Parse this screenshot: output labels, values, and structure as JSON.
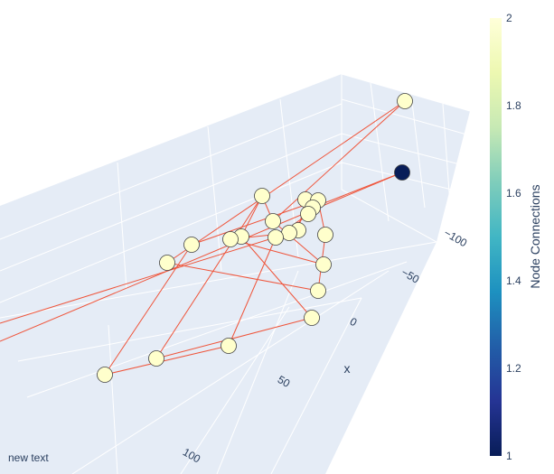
{
  "chart_data": {
    "type": "scatter",
    "subtype": "3d-network",
    "x_axis": {
      "label": "x",
      "ticks": [
        "−100",
        "−50",
        "0",
        "50",
        "100"
      ]
    },
    "colorbar": {
      "title": "Node Connections",
      "range": [
        1,
        2
      ],
      "ticks": [
        "1",
        "1.2",
        "1.4",
        "1.6",
        "1.8",
        "2"
      ],
      "colorscale": [
        "#081d58",
        "#253494",
        "#225ea8",
        "#1d91c0",
        "#41b6c4",
        "#7fcdbb",
        "#c7e9b4",
        "#edf8b1",
        "#ffffd9"
      ]
    },
    "node_colors": {
      "connections_2": "#ffffcc",
      "connections_1": "#081d58"
    },
    "edge_color": "#ef553b",
    "annotation": "new text",
    "nodes": [
      {
        "id": 0,
        "connections": 2
      },
      {
        "id": 1,
        "connections": 1
      },
      {
        "id": 2,
        "connections": 2
      },
      {
        "id": 3,
        "connections": 2
      },
      {
        "id": 4,
        "connections": 2
      },
      {
        "id": 5,
        "connections": 2
      },
      {
        "id": 6,
        "connections": 2
      },
      {
        "id": 7,
        "connections": 2
      },
      {
        "id": 8,
        "connections": 2
      },
      {
        "id": 9,
        "connections": 2
      },
      {
        "id": 10,
        "connections": 2
      },
      {
        "id": 11,
        "connections": 2
      },
      {
        "id": 12,
        "connections": 2
      },
      {
        "id": 13,
        "connections": 2
      },
      {
        "id": 14,
        "connections": 2
      },
      {
        "id": 15,
        "connections": 2
      },
      {
        "id": 16,
        "connections": 2
      },
      {
        "id": 17,
        "connections": 2
      },
      {
        "id": 18,
        "connections": 2
      },
      {
        "id": 19,
        "connections": 2
      },
      {
        "id": 20,
        "connections": 2
      },
      {
        "id": 21,
        "connections": 2
      },
      {
        "id": 22,
        "connections": 2
      },
      {
        "id": 23,
        "connections": 2
      }
    ]
  }
}
